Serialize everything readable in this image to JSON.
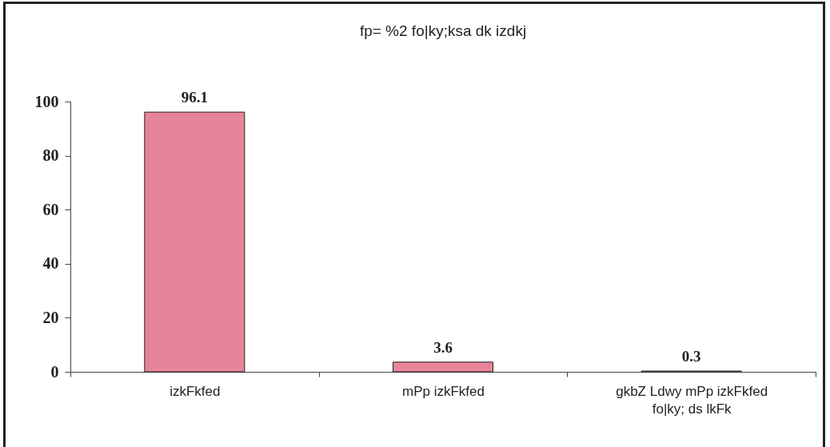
{
  "chart_data": {
    "type": "bar",
    "title": "fp= %2 fo|ky;ksa dk izdkj",
    "categories": [
      "izkFkfed",
      "mPp izkFkfed",
      "gkbZ Ldwy mPp izkFkfed\nfo|ky; ds lkFk"
    ],
    "values": [
      96.1,
      3.6,
      0.3
    ],
    "color": "#e8849a",
    "ylim": [
      0,
      100
    ],
    "yticks": [
      0,
      20,
      40,
      60,
      80,
      100
    ],
    "grid": false,
    "data_labels": true
  }
}
